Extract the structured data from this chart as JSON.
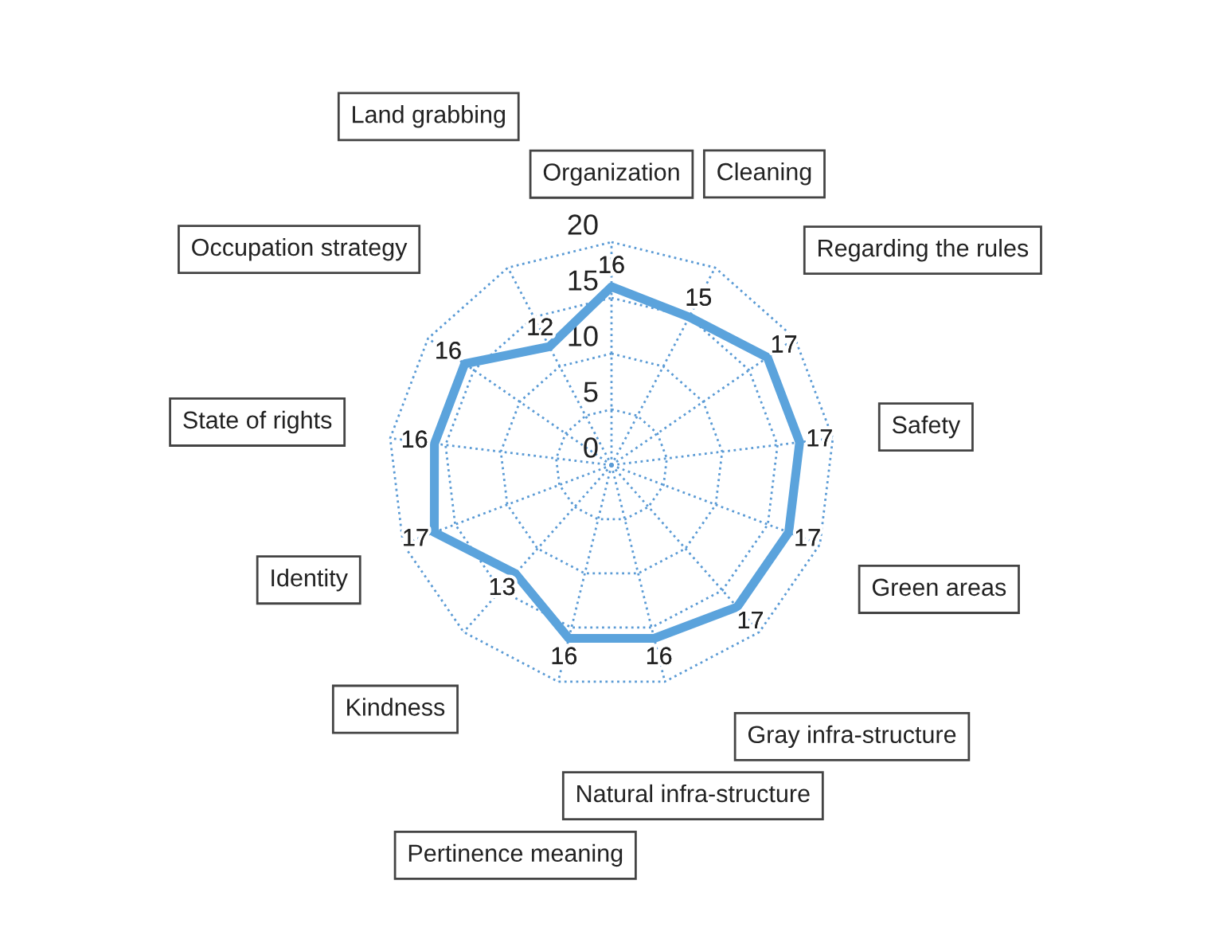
{
  "chart_data": {
    "type": "radar",
    "categories": [
      "Organization",
      "Cleaning",
      "Regarding the rules",
      "Safety",
      "Green areas",
      "Gray infra-structure",
      "Natural infra-structure",
      "Pertinence meaning",
      "Kindness",
      "Identity",
      "State of rights",
      "Occupation strategy",
      "Land grabbing"
    ],
    "series": [
      {
        "color": "#5ba3dc",
        "values": [
          16,
          15,
          17,
          17,
          17,
          17,
          16,
          16,
          13,
          17,
          16,
          16,
          12
        ]
      }
    ],
    "ylim": [
      0,
      20
    ],
    "yticks": [
      0,
      5,
      10,
      15,
      20
    ],
    "grid": true,
    "data_labels": true,
    "legend": false
  }
}
